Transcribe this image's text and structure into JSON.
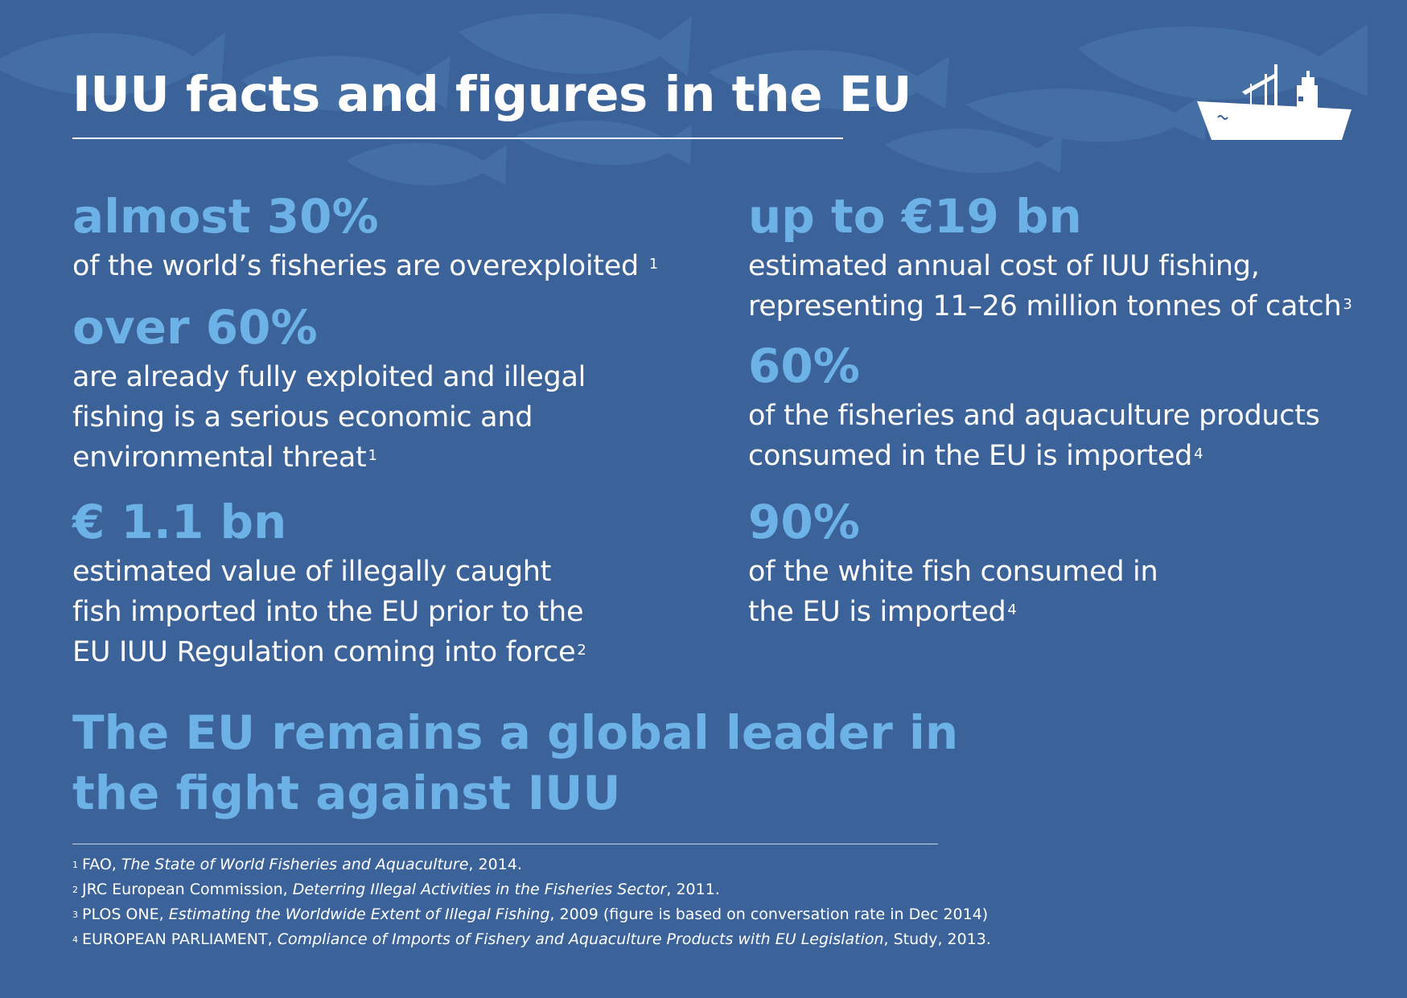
{
  "title": "IUU facts and figures in the EU",
  "stats_left": [
    {
      "value": "almost 30%",
      "lines": [
        "of the world’s fisheries are overexploited"
      ],
      "ref": "1"
    },
    {
      "value": "over 60%",
      "lines": [
        "are already fully exploited and illegal",
        "fishing is a serious economic and",
        "environmental threat"
      ],
      "ref": "1"
    },
    {
      "value": "€ 1.1 bn",
      "lines": [
        "estimated value of illegally caught",
        "fish imported into the EU prior to the",
        "EU IUU Regulation coming into force"
      ],
      "ref": "2"
    }
  ],
  "stats_right": [
    {
      "value": "up to €19 bn",
      "lines": [
        "estimated annual cost of IUU fishing,",
        "representing 11–26 million tonnes of catch"
      ],
      "ref": "3"
    },
    {
      "value": "60%",
      "lines": [
        "of the fisheries and aquaculture products",
        "consumed in the EU is imported"
      ],
      "ref": "4"
    },
    {
      "value": "90%",
      "lines": [
        "of the white fish consumed in",
        "the EU is imported"
      ],
      "ref": "4"
    }
  ],
  "closing": [
    "The EU remains a global leader in",
    "the fight against IUU"
  ],
  "footnotes": [
    {
      "num": "1",
      "pre": "FAO, ",
      "italic": "The State of World Fisheries and Aquaculture",
      "post": ", 2014."
    },
    {
      "num": "2",
      "pre": "JRC European Commission, ",
      "italic": "Deterring Illegal Activities in the Fisheries Sector",
      "post": ", 2011."
    },
    {
      "num": "3",
      "pre": "PLOS ONE, ",
      "italic": "Estimating the Worldwide Extent of Illegal Fishing",
      "post": ", 2009 (figure is based on conversation rate in Dec 2014)"
    },
    {
      "num": "4",
      "pre": "EUROPEAN PARLIAMENT, ",
      "italic": "Compliance of Imports of Fishery and Aquaculture Products with EU Legislation",
      "post": ", Study,  2013."
    }
  ],
  "icons": {
    "ship": "fishing-vessel-icon",
    "background": "fish-silhouettes"
  },
  "colors": {
    "background": "#3b6299",
    "accent": "#6db2e6",
    "text": "#ffffff"
  }
}
